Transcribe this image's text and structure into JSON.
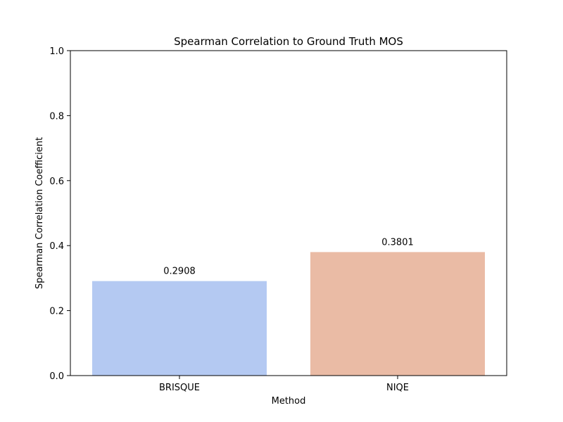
{
  "chart_data": {
    "type": "bar",
    "title": "Spearman Correlation to Ground Truth MOS",
    "xlabel": "Method",
    "ylabel": "Spearman Correlation Coefficient",
    "categories": [
      "BRISQUE",
      "NIQE"
    ],
    "values": [
      0.2908,
      0.3801
    ],
    "value_labels": [
      "0.2908",
      "0.3801"
    ],
    "colors": [
      "#b4c9f2",
      "#eabba5"
    ],
    "ylim": [
      0,
      1.0
    ],
    "yticks": [
      {
        "value": 0.0,
        "label": "0.0"
      },
      {
        "value": 0.2,
        "label": "0.2"
      },
      {
        "value": 0.4,
        "label": "0.4"
      },
      {
        "value": 0.6,
        "label": "0.6"
      },
      {
        "value": 0.8,
        "label": "0.8"
      },
      {
        "value": 1.0,
        "label": "1.0"
      }
    ],
    "grid": false,
    "legend": "none"
  }
}
